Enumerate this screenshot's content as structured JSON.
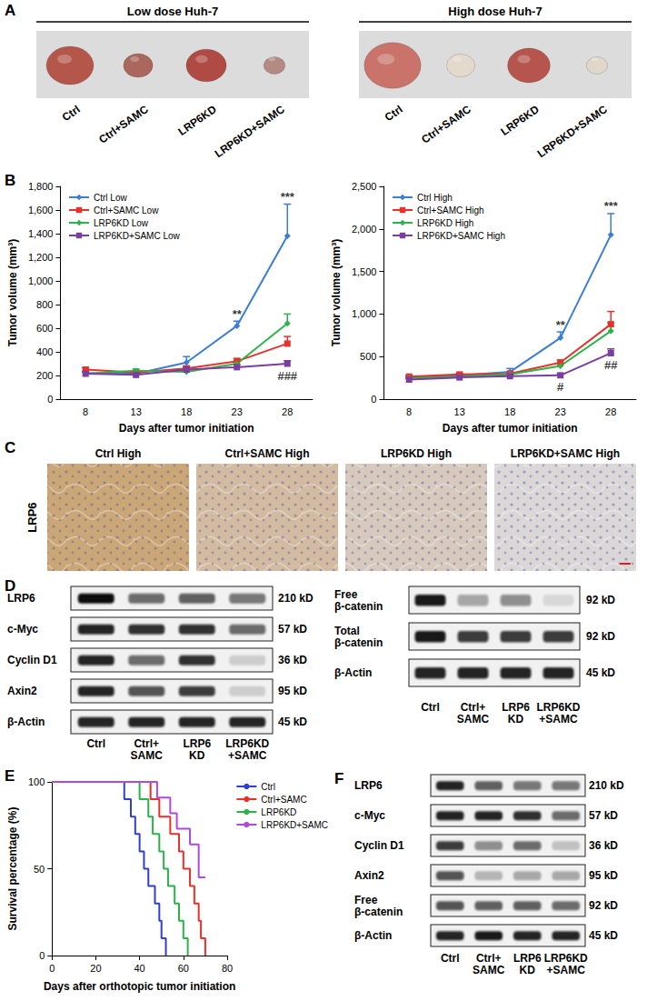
{
  "chart_data": [
    {
      "panel": "B",
      "type": "line",
      "x_label": "Days after tumor initiation",
      "y_label": "Tumor volume (mm³)",
      "categories": [
        8,
        13,
        18,
        23,
        28
      ],
      "ylim": [
        0,
        1800
      ],
      "yticks": [
        0,
        200,
        400,
        600,
        800,
        1000,
        1200,
        1400,
        1600,
        1800
      ],
      "grid": false,
      "legend": "top-left",
      "series": [
        {
          "name": "Ctrl Low",
          "color": "#3b7dd8",
          "marker": "diamond",
          "values": [
            220,
            215,
            310,
            620,
            1380
          ],
          "errors": [
            15,
            15,
            50,
            40,
            270
          ]
        },
        {
          "name": "Ctrl+SAMC Low",
          "color": "#e8312a",
          "marker": "square",
          "values": [
            250,
            225,
            260,
            320,
            470
          ],
          "errors": [
            15,
            15,
            20,
            25,
            60
          ]
        },
        {
          "name": "LRP6KD Low",
          "color": "#2bb34a",
          "marker": "diamond",
          "values": [
            215,
            240,
            230,
            300,
            640
          ],
          "errors": [
            15,
            15,
            20,
            25,
            80
          ]
        },
        {
          "name": "LRP6KD+SAMC Low",
          "color": "#7a3ea1",
          "marker": "square",
          "values": [
            215,
            205,
            250,
            270,
            300
          ],
          "errors": [
            15,
            15,
            20,
            20,
            25
          ]
        }
      ],
      "annotations": [
        {
          "text": "**",
          "x": 23,
          "series": "Ctrl Low",
          "position": "above"
        },
        {
          "text": "***",
          "x": 28,
          "series": "Ctrl Low",
          "position": "above"
        },
        {
          "text": "###",
          "x": 28,
          "series": "LRP6KD+SAMC Low",
          "position": "below"
        }
      ]
    },
    {
      "type": "line",
      "x_label": "Days after tumor initiation",
      "y_label": "Tumor volume (mm³)",
      "categories": [
        8,
        13,
        18,
        23,
        28
      ],
      "ylim": [
        0,
        2500
      ],
      "yticks": [
        0,
        500,
        1000,
        1500,
        2000,
        2500
      ],
      "grid": false,
      "legend": "top-left",
      "series": [
        {
          "name": "Ctrl High",
          "color": "#3b7dd8",
          "marker": "diamond",
          "values": [
            250,
            280,
            320,
            720,
            1930
          ],
          "errors": [
            15,
            20,
            40,
            70,
            250
          ]
        },
        {
          "name": "Ctrl+SAMC High",
          "color": "#e8312a",
          "marker": "square",
          "values": [
            265,
            290,
            300,
            430,
            880
          ],
          "errors": [
            15,
            15,
            20,
            30,
            150
          ]
        },
        {
          "name": "LRP6KD High",
          "color": "#2bb34a",
          "marker": "diamond",
          "values": [
            245,
            265,
            290,
            390,
            800
          ],
          "errors": [
            15,
            15,
            20,
            30,
            100
          ]
        },
        {
          "name": "LRP6KD+SAMC High",
          "color": "#7a3ea1",
          "marker": "square",
          "values": [
            230,
            255,
            270,
            280,
            540
          ],
          "errors": [
            15,
            15,
            15,
            20,
            50
          ]
        }
      ],
      "annotations": [
        {
          "text": "**",
          "x": 23,
          "series": "Ctrl High",
          "position": "above"
        },
        {
          "text": "***",
          "x": 28,
          "series": "Ctrl High",
          "position": "above"
        },
        {
          "text": "#",
          "x": 23,
          "series": "LRP6KD+SAMC High",
          "position": "below"
        },
        {
          "text": "##",
          "x": 28,
          "series": "LRP6KD+SAMC High",
          "position": "below"
        }
      ]
    },
    {
      "panel": "E",
      "type": "step",
      "x_label": "Days after orthotopic tumor initiation",
      "y_label": "Survival percentage (%)",
      "xlim": [
        0,
        80
      ],
      "xticks": [
        0,
        20,
        40,
        60,
        80
      ],
      "ylim": [
        0,
        100
      ],
      "yticks": [
        0,
        50,
        100
      ],
      "grid": false,
      "legend": "right",
      "series": [
        {
          "name": "Ctrl",
          "color": "#2f3fd6",
          "x": [
            0,
            33,
            36,
            38,
            40,
            42,
            44,
            47,
            49,
            50,
            52
          ],
          "values": [
            100,
            90,
            80,
            70,
            60,
            50,
            40,
            30,
            20,
            10,
            0
          ]
        },
        {
          "name": "Ctrl+SAMC",
          "color": "#e8312a",
          "x": [
            0,
            45,
            49,
            54,
            58,
            60,
            63,
            65,
            67,
            68,
            70
          ],
          "values": [
            100,
            90,
            80,
            70,
            60,
            50,
            40,
            30,
            20,
            10,
            0
          ]
        },
        {
          "name": "LRP6KD",
          "color": "#2bb34a",
          "x": [
            0,
            40,
            44,
            46,
            49,
            51,
            53,
            56,
            58,
            60,
            62
          ],
          "values": [
            100,
            90,
            80,
            70,
            60,
            50,
            40,
            30,
            20,
            10,
            0
          ]
        },
        {
          "name": "LRP6KD+SAMC",
          "color": "#b04ad8",
          "x": [
            0,
            48,
            54,
            57,
            63,
            67,
            70
          ],
          "values": [
            100,
            91,
            82,
            73,
            64,
            45,
            45
          ]
        }
      ]
    }
  ],
  "panels": {
    "A": {
      "panel": "A",
      "groups": [
        {
          "title": "Low dose Huh-7",
          "lanes": [
            "Ctrl",
            "Ctrl+SAMC",
            "LRP6KD",
            "LRP6KD+SAMC"
          ],
          "tumor_sizes": [
            1,
            0.62,
            0.85,
            0.45
          ],
          "colors": [
            "#b5564a",
            "#a9675e",
            "#b04a44",
            "#b38b83"
          ]
        },
        {
          "title": "High dose Huh-7",
          "lanes": [
            "Ctrl",
            "Ctrl+SAMC",
            "LRP6KD",
            "LRP6KD+SAMC"
          ],
          "tumor_sizes": [
            1.2,
            0.6,
            0.9,
            0.45
          ],
          "colors": [
            "#c9736b",
            "#e3d9cc",
            "#b5554e",
            "#e0d6ca"
          ]
        }
      ]
    },
    "C": {
      "panel": "C",
      "row_label": "LRP6",
      "images": [
        {
          "title": "Ctrl High",
          "stain": 0.85
        },
        {
          "title": "Ctrl+SAMC High",
          "stain": 0.55
        },
        {
          "title": "LRP6KD High",
          "stain": 0.35
        },
        {
          "title": "LRP6KD+SAMC High",
          "stain": 0.15
        }
      ]
    },
    "D": {
      "panel": "D",
      "blots": [
        {
          "lanes": [
            "Ctrl",
            "Ctrl+\nSAMC",
            "LRP6\nKD",
            "LRP6KD\n+SAMC"
          ],
          "rows": [
            {
              "label": "LRP6",
              "size": "210 kD",
              "bands": [
                1,
                0.6,
                0.65,
                0.55
              ]
            },
            {
              "label": "c-Myc",
              "size": "57 kD",
              "bands": [
                0.9,
                0.85,
                0.85,
                0.6
              ]
            },
            {
              "label": "Cyclin D1",
              "size": "36 kD",
              "bands": [
                0.9,
                0.6,
                0.85,
                0.15
              ]
            },
            {
              "label": "Axin2",
              "size": "95 kD",
              "bands": [
                0.9,
                0.7,
                0.8,
                0.15
              ]
            },
            {
              "label": "β-Actin",
              "size": "45 kD",
              "bands": [
                0.9,
                0.9,
                0.9,
                0.9
              ]
            }
          ]
        },
        {
          "lanes": [
            "Ctrl",
            "Ctrl+\nSAMC",
            "LRP6\nKD",
            "LRP6KD\n+SAMC"
          ],
          "rows": [
            {
              "label": "Free\nβ-catenin",
              "size": "92 kD",
              "bands": [
                0.95,
                0.35,
                0.45,
                0.1
              ]
            },
            {
              "label": "Total\nβ-catenin",
              "size": "92 kD",
              "bands": [
                0.95,
                0.8,
                0.8,
                0.8
              ]
            },
            {
              "label": "β-Actin",
              "size": "45 kD",
              "bands": [
                0.9,
                0.9,
                0.9,
                0.9
              ]
            }
          ]
        }
      ]
    },
    "F": {
      "panel": "F",
      "blots": [
        {
          "lanes": [
            "Ctrl",
            "Ctrl+\nSAMC",
            "LRP6\nKD",
            "LRP6KD\n+SAMC"
          ],
          "rows": [
            {
              "label": "LRP6",
              "size": "210 kD",
              "bands": [
                0.9,
                0.65,
                0.55,
                0.55
              ]
            },
            {
              "label": "c-Myc",
              "size": "57 kD",
              "bands": [
                0.9,
                0.9,
                0.85,
                0.6
              ]
            },
            {
              "label": "Cyclin D1",
              "size": "36 kD",
              "bands": [
                0.8,
                0.45,
                0.6,
                0.2
              ]
            },
            {
              "label": "Axin2",
              "size": "95 kD",
              "bands": [
                0.7,
                0.25,
                0.3,
                0.3
              ]
            },
            {
              "label": "Free\nβ-catenin",
              "size": "92 kD",
              "bands": [
                0.7,
                0.65,
                0.65,
                0.6
              ]
            },
            {
              "label": "β-Actin",
              "size": "45 kD",
              "bands": [
                0.9,
                0.95,
                0.9,
                0.9
              ]
            }
          ]
        }
      ]
    }
  }
}
